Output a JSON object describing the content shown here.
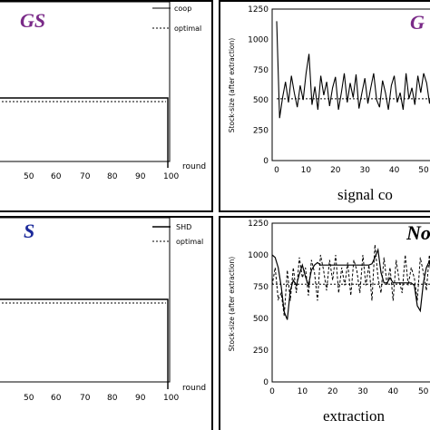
{
  "colors": {
    "gs": "#7a2a88",
    "s": "#1c2a9a",
    "ink": "#000000"
  },
  "chart_data": [
    {
      "type": "line",
      "title": "GS",
      "xlabel": "round",
      "xlim": [
        0,
        100
      ],
      "x_ticks": [
        "50",
        "60",
        "70",
        "80",
        "90",
        "100"
      ],
      "legend": [
        "coop",
        "optimal"
      ],
      "legend_position": "top-right",
      "series": [
        {
          "name": "coop",
          "x": [
            0,
            100,
            100
          ],
          "y": [
            520,
            520,
            0
          ]
        },
        {
          "name": "optimal",
          "x": [
            0,
            100
          ],
          "y": [
            515,
            515
          ]
        }
      ]
    },
    {
      "type": "line",
      "title": "G",
      "xlabel": "signal co",
      "ylabel": "Stock-size (after extraction)",
      "ylim": [
        0,
        1250
      ],
      "y_ticks": [
        "0",
        "250",
        "500",
        "750",
        "1000",
        "1250"
      ],
      "x_ticks": [
        "0",
        "10",
        "20",
        "30",
        "40",
        "50"
      ],
      "series": [
        {
          "name": "stock",
          "x": [
            0,
            1,
            2,
            3,
            4,
            5,
            6,
            7,
            8,
            9,
            10,
            11,
            12,
            13,
            14,
            15,
            16,
            17,
            18,
            19,
            20,
            21,
            22,
            23,
            24,
            25,
            26,
            27,
            28,
            29,
            30,
            31,
            32,
            33,
            34,
            35,
            36,
            37,
            38,
            39,
            40,
            41,
            42,
            43,
            44,
            45,
            46,
            47,
            48,
            49,
            50,
            51,
            52,
            53,
            54
          ],
          "y": [
            1150,
            350,
            520,
            650,
            480,
            700,
            560,
            440,
            620,
            500,
            720,
            880,
            460,
            610,
            420,
            700,
            540,
            650,
            450,
            600,
            690,
            420,
            560,
            720,
            480,
            640,
            520,
            710,
            430,
            560,
            680,
            470,
            600,
            720,
            500,
            440,
            660,
            560,
            420,
            620,
            700,
            480,
            560,
            420,
            720,
            510,
            600,
            460,
            700,
            560,
            720,
            640,
            470,
            600,
            540
          ]
        },
        {
          "name": "optimal",
          "x": [
            0,
            54
          ],
          "y": [
            510,
            510
          ]
        }
      ]
    },
    {
      "type": "line",
      "title": "S",
      "xlabel": "round",
      "xlim": [
        0,
        100
      ],
      "x_ticks": [
        "50",
        "60",
        "70",
        "80",
        "90",
        "100"
      ],
      "legend": [
        "SHD",
        "optimal"
      ],
      "legend_position": "top-right",
      "series": [
        {
          "name": "SHD",
          "x": [
            0,
            100,
            100
          ],
          "y": [
            520,
            520,
            0
          ]
        },
        {
          "name": "optimal",
          "x": [
            0,
            100
          ],
          "y": [
            515,
            515
          ]
        }
      ]
    },
    {
      "type": "line",
      "title": "No",
      "xlabel": "extraction",
      "ylabel": "Stock-size (after extraction)",
      "ylim": [
        0,
        1250
      ],
      "y_ticks": [
        "0",
        "250",
        "500",
        "750",
        "1000",
        "1250"
      ],
      "x_ticks": [
        "0",
        "10",
        "20",
        "30",
        "40",
        "50"
      ],
      "series": [
        {
          "name": "solid",
          "x": [
            0,
            1,
            2,
            3,
            4,
            5,
            6,
            7,
            8,
            9,
            10,
            11,
            12,
            13,
            14,
            15,
            16,
            17,
            18,
            19,
            20,
            21,
            22,
            23,
            24,
            25,
            26,
            27,
            28,
            29,
            30,
            31,
            32,
            33,
            34,
            35,
            36,
            37,
            38,
            39,
            40,
            41,
            42,
            43,
            44,
            45,
            46,
            47,
            48,
            49,
            50,
            51,
            52,
            53,
            54
          ],
          "y": [
            1000,
            980,
            900,
            750,
            550,
            490,
            720,
            800,
            760,
            850,
            920,
            830,
            760,
            880,
            920,
            940,
            920,
            920,
            920,
            920,
            920,
            920,
            920,
            920,
            920,
            920,
            920,
            920,
            920,
            920,
            920,
            920,
            920,
            930,
            980,
            1040,
            860,
            780,
            780,
            820,
            780,
            780,
            780,
            780,
            780,
            780,
            780,
            760,
            600,
            560,
            780,
            900,
            950,
            780,
            780
          ]
        },
        {
          "name": "dashed",
          "x": [
            0,
            1,
            2,
            3,
            4,
            5,
            6,
            7,
            8,
            9,
            10,
            11,
            12,
            13,
            14,
            15,
            16,
            17,
            18,
            19,
            20,
            21,
            22,
            23,
            24,
            25,
            26,
            27,
            28,
            29,
            30,
            31,
            32,
            33,
            34,
            35,
            36,
            37,
            38,
            39,
            40,
            41,
            42,
            43,
            44,
            45,
            46,
            47,
            48,
            49,
            50,
            51,
            52,
            53,
            54
          ],
          "y": [
            760,
            900,
            650,
            700,
            520,
            880,
            640,
            900,
            700,
            980,
            820,
            900,
            680,
            960,
            860,
            640,
            1000,
            880,
            720,
            960,
            800,
            1000,
            700,
            900,
            760,
            940,
            680,
            960,
            880,
            700,
            1000,
            760,
            920,
            640,
            1080,
            820,
            700,
            980,
            760,
            900,
            640,
            960,
            800,
            700,
            1000,
            760,
            900,
            820,
            640,
            980,
            860,
            720,
            1000,
            800,
            900
          ]
        },
        {
          "name": "optimal",
          "x": [
            0,
            54
          ],
          "y": [
            770,
            770
          ]
        }
      ]
    }
  ]
}
